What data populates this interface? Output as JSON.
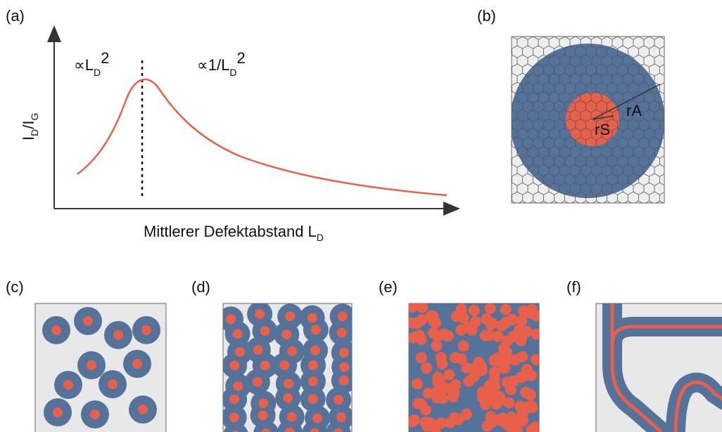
{
  "panels": {
    "a": {
      "label": "(a)",
      "y_label": [
        "I",
        "D",
        "/I",
        "G"
      ],
      "x_label": [
        "Mittlerer Defektabstand L",
        "D"
      ],
      "left_regime": [
        "∝L",
        "D",
        "2"
      ],
      "right_regime": [
        "∝1/L",
        "D",
        "2"
      ]
    },
    "b": {
      "label": "(b)",
      "r_a": "rA",
      "r_s": "rS"
    },
    "c": {
      "label": "(c)"
    },
    "d": {
      "label": "(d)"
    },
    "e": {
      "label": "(e)"
    },
    "f": {
      "label": "(f)"
    }
  }
}
